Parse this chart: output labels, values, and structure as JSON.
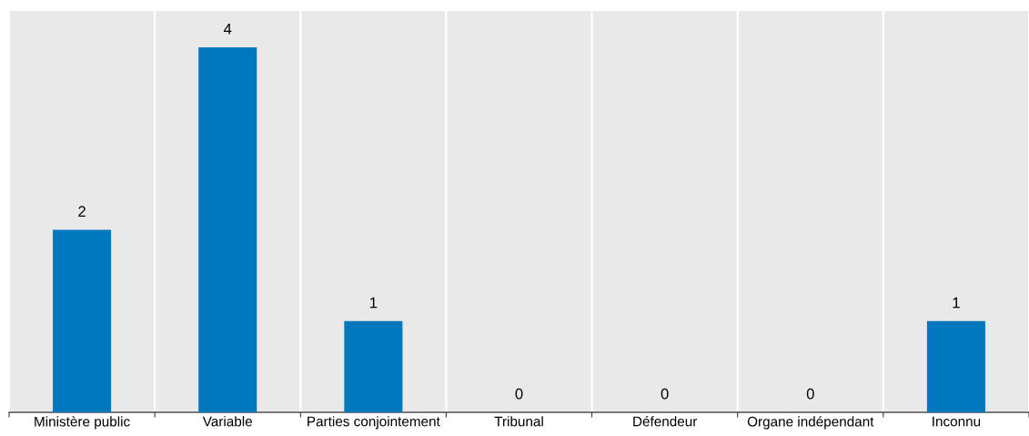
{
  "chart_data": {
    "type": "bar",
    "categories": [
      "Ministère public",
      "Variable",
      "Parties conjointement",
      "Tribunal",
      "Défendeur",
      "Organe indépendant",
      "Inconnu"
    ],
    "values": [
      2,
      4,
      1,
      0,
      0,
      0,
      1
    ],
    "color": "#0078be",
    "data_labels": true,
    "grid": "x",
    "legend": false
  }
}
